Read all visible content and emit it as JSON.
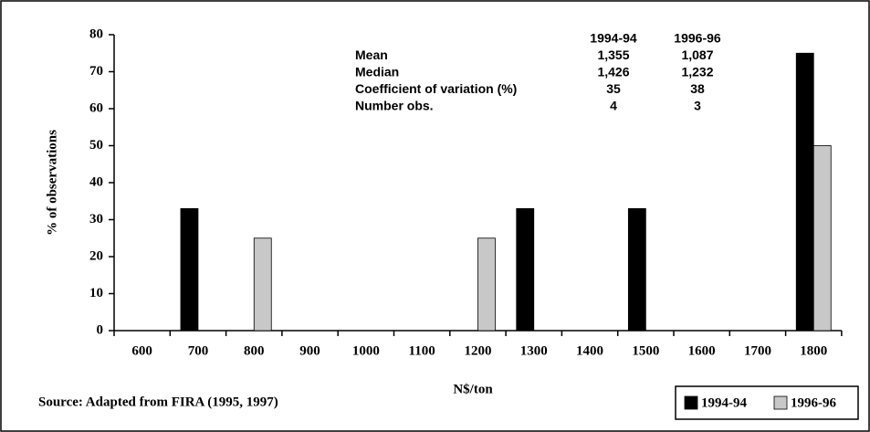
{
  "chart_data": {
    "type": "bar",
    "categories": [
      "600",
      "700",
      "800",
      "900",
      "1000",
      "1100",
      "1200",
      "1300",
      "1400",
      "1500",
      "1600",
      "1700",
      "1800"
    ],
    "series": [
      {
        "name": "1994-94",
        "color": "#000000",
        "values": [
          0,
          33,
          0,
          0,
          0,
          0,
          0,
          33,
          0,
          33,
          0,
          0,
          75
        ]
      },
      {
        "name": "1996-96",
        "color": "#c8c8c8",
        "values": [
          0,
          0,
          25,
          0,
          0,
          0,
          25,
          0,
          0,
          0,
          0,
          0,
          50
        ]
      }
    ],
    "ylim": [
      0,
      80
    ],
    "yticks": [
      0,
      10,
      20,
      30,
      40,
      50,
      60,
      70,
      80
    ],
    "grid": false,
    "xlabel": "N$/ton",
    "ylabel": "% of observations",
    "note": "Source: Adapted from FIRA (1995, 1997)",
    "legend": "bottom-right",
    "stats_table": {
      "header": [
        "1994-94",
        "1996-96"
      ],
      "rows": [
        [
          "Mean",
          "1,355",
          "1,087"
        ],
        [
          "Median",
          "1,426",
          "1,232"
        ],
        [
          "Coefficient of variation (%)",
          35,
          38
        ],
        [
          "Number obs.",
          4,
          3
        ]
      ]
    }
  }
}
